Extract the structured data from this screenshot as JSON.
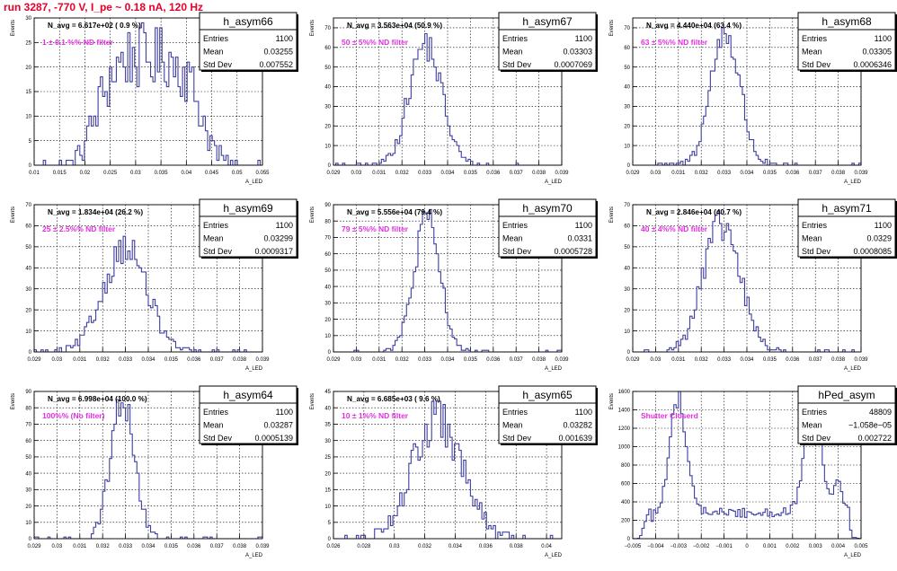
{
  "page_title": "run 3287,  -770 V, I_pe ~ 0.18 nA, 120 Hz",
  "stats_labels": {
    "entries": "Entries",
    "mean": "Mean",
    "stddev": "Std Dev"
  },
  "y_axis_label": "Events",
  "x_axis_label": "A_LED",
  "colors": {
    "histogram": "#3f3fa0",
    "title": "#e8002a",
    "annotation": "#e22fe0",
    "grid": "#000000"
  },
  "chart_data": [
    {
      "type": "bar",
      "name": "h_asym66",
      "title": "N_avg = 6.617e+02 ( 0.9 %)",
      "annotation": "1 ± 0.1 %% ND filter",
      "stats": {
        "entries": "1100",
        "mean": "0.03255",
        "stddev": "0.007552"
      },
      "xlim": [
        0.01,
        0.055
      ],
      "ylim": [
        0,
        30
      ],
      "xticks": [
        "0.01",
        "0.015",
        "0.02",
        "0.025",
        "0.03",
        "0.035",
        "0.04",
        "0.045",
        "0.05",
        "0.055"
      ],
      "yticks": [
        "0",
        "5",
        "10",
        "15",
        "20",
        "25",
        "30"
      ],
      "ytick_values": [
        0,
        5,
        10,
        15,
        20,
        25,
        30
      ],
      "profile": {
        "mean": 0.03255,
        "sd": 0.007552,
        "shape": "flat",
        "peak": 22
      },
      "xlabel": "A_LED",
      "ylabel": "Events"
    },
    {
      "type": "bar",
      "name": "h_asym67",
      "title": "N_avg = 3.563e+04 (50.9 %)",
      "annotation": "50 ± 5%% ND filter",
      "stats": {
        "entries": "1100",
        "mean": "0.03303",
        "stddev": "0.0007069"
      },
      "xlim": [
        0.029,
        0.039
      ],
      "ylim": [
        0,
        75
      ],
      "xticks": [
        "0.029",
        "0.03",
        "0.031",
        "0.032",
        "0.033",
        "0.034",
        "0.035",
        "0.036",
        "0.037",
        "0.038",
        "0.039"
      ],
      "yticks": [
        "0",
        "10",
        "20",
        "30",
        "40",
        "50",
        "60",
        "70"
      ],
      "ytick_values": [
        0,
        10,
        20,
        30,
        40,
        50,
        60,
        70
      ],
      "profile": {
        "mean": 0.03303,
        "sd": 0.0007069,
        "shape": "gauss",
        "peak": 62
      },
      "xlabel": "A_LED",
      "ylabel": "Events"
    },
    {
      "type": "bar",
      "name": "h_asym68",
      "title": "N_avg = 4.440e+04 (63.4 %)",
      "annotation": "63 ± 5%% ND filter",
      "stats": {
        "entries": "1100",
        "mean": "0.03305",
        "stddev": "0.0006346"
      },
      "xlim": [
        0.029,
        0.039
      ],
      "ylim": [
        0,
        75
      ],
      "xticks": [
        "0.029",
        "0.03",
        "0.031",
        "0.032",
        "0.033",
        "0.034",
        "0.035",
        "0.036",
        "0.037",
        "0.038",
        "0.039"
      ],
      "yticks": [
        "0",
        "10",
        "20",
        "30",
        "40",
        "50",
        "60",
        "70"
      ],
      "ytick_values": [
        0,
        10,
        20,
        30,
        40,
        50,
        60,
        70
      ],
      "profile": {
        "mean": 0.03305,
        "sd": 0.0006346,
        "shape": "gauss",
        "peak": 68
      },
      "xlabel": "A_LED",
      "ylabel": "Events"
    },
    {
      "type": "bar",
      "name": "h_asym69",
      "title": "N_avg = 1.834e+04 (26.2 %)",
      "annotation": "25 ± 2.5%% ND filter",
      "stats": {
        "entries": "1100",
        "mean": "0.03299",
        "stddev": "0.0009317"
      },
      "xlim": [
        0.029,
        0.039
      ],
      "ylim": [
        0,
        70
      ],
      "xticks": [
        "0.029",
        "0.03",
        "0.031",
        "0.032",
        "0.033",
        "0.034",
        "0.035",
        "0.036",
        "0.037",
        "0.038",
        "0.039"
      ],
      "yticks": [
        "0",
        "10",
        "20",
        "30",
        "40",
        "50",
        "60",
        "70"
      ],
      "ytick_values": [
        0,
        10,
        20,
        30,
        40,
        50,
        60,
        70
      ],
      "profile": {
        "mean": 0.03299,
        "sd": 0.0009317,
        "shape": "gauss",
        "peak": 50
      },
      "xlabel": "A_LED",
      "ylabel": "Events"
    },
    {
      "type": "bar",
      "name": "h_asym70",
      "title": "N_avg = 5.556e+04 (79.4 %)",
      "annotation": "79 ± 5%% ND filter",
      "stats": {
        "entries": "1100",
        "mean": "0.0331",
        "stddev": "0.0005728"
      },
      "xlim": [
        0.029,
        0.039
      ],
      "ylim": [
        0,
        90
      ],
      "xticks": [
        "0.029",
        "0.03",
        "0.031",
        "0.032",
        "0.033",
        "0.034",
        "0.035",
        "0.036",
        "0.037",
        "0.038",
        "0.039"
      ],
      "yticks": [
        "0",
        "10",
        "20",
        "30",
        "40",
        "50",
        "60",
        "70",
        "80",
        "90"
      ],
      "ytick_values": [
        0,
        10,
        20,
        30,
        40,
        50,
        60,
        70,
        80,
        90
      ],
      "profile": {
        "mean": 0.0331,
        "sd": 0.0005728,
        "shape": "gauss",
        "peak": 80
      },
      "xlabel": "A_LED",
      "ylabel": "Events"
    },
    {
      "type": "bar",
      "name": "h_asym71",
      "title": "N_avg = 2.846e+04 (40.7 %)",
      "annotation": "40 ± 4%% ND filter",
      "stats": {
        "entries": "1100",
        "mean": "0.0329",
        "stddev": "0.0008085"
      },
      "xlim": [
        0.029,
        0.039
      ],
      "ylim": [
        0,
        70
      ],
      "xticks": [
        "0.029",
        "0.03",
        "0.031",
        "0.032",
        "0.033",
        "0.034",
        "0.035",
        "0.036",
        "0.037",
        "0.038",
        "0.039"
      ],
      "yticks": [
        "0",
        "10",
        "20",
        "30",
        "40",
        "50",
        "60",
        "70"
      ],
      "ytick_values": [
        0,
        10,
        20,
        30,
        40,
        50,
        60,
        70
      ],
      "profile": {
        "mean": 0.0329,
        "sd": 0.0008085,
        "shape": "gauss",
        "peak": 60
      },
      "xlabel": "A_LED",
      "ylabel": "Events"
    },
    {
      "type": "bar",
      "name": "h_asym64",
      "title": "N_avg = 6.998e+04 (100.0 %)",
      "annotation": "100%% (No filter)",
      "stats": {
        "entries": "1100",
        "mean": "0.03287",
        "stddev": "0.0005139"
      },
      "xlim": [
        0.029,
        0.039
      ],
      "ylim": [
        0,
        90
      ],
      "xticks": [
        "0.029",
        "0.03",
        "0.031",
        "0.032",
        "0.033",
        "0.034",
        "0.035",
        "0.036",
        "0.037",
        "0.038",
        "0.039"
      ],
      "yticks": [
        "0",
        "10",
        "20",
        "30",
        "40",
        "50",
        "60",
        "70",
        "80",
        "90"
      ],
      "ytick_values": [
        0,
        10,
        20,
        30,
        40,
        50,
        60,
        70,
        80,
        90
      ],
      "profile": {
        "mean": 0.03287,
        "sd": 0.0005139,
        "shape": "gauss",
        "peak": 86
      },
      "xlabel": "A_LED",
      "ylabel": "Events"
    },
    {
      "type": "bar",
      "name": "h_asym65",
      "title": "N_avg = 6.685e+03 ( 9.6 %)",
      "annotation": "10 ± 1%% ND filter",
      "stats": {
        "entries": "1100",
        "mean": "0.03282",
        "stddev": "0.001639"
      },
      "xlim": [
        0.026,
        0.041
      ],
      "ylim": [
        0,
        45
      ],
      "xticks": [
        "0.026",
        "0.028",
        "0.03",
        "0.032",
        "0.034",
        "0.036",
        "0.038",
        "0.04"
      ],
      "ytick_values": [
        0,
        5,
        10,
        15,
        20,
        25,
        30,
        35,
        40,
        45
      ],
      "yticks": [
        "0",
        "5",
        "10",
        "15",
        "20",
        "25",
        "30",
        "35",
        "40",
        "45"
      ],
      "profile": {
        "mean": 0.03282,
        "sd": 0.001639,
        "shape": "gauss",
        "peak": 36
      },
      "xlabel": "A_LED",
      "ylabel": "Events"
    },
    {
      "type": "bar",
      "name": "hPed_asym",
      "title": "",
      "annotation": "Shutter Closerd",
      "stats": {
        "entries": "48809",
        "mean": "−1.058e−05",
        "stddev": "0.002722"
      },
      "xlim": [
        -0.005,
        0.005
      ],
      "ylim": [
        0,
        1600
      ],
      "xticks": [
        "−0.005",
        "−0.004",
        "−0.003",
        "−0.002",
        "−0.001",
        "0",
        "0.001",
        "0.002",
        "0.003",
        "0.004",
        "0.005"
      ],
      "yticks": [
        "0",
        "200",
        "400",
        "600",
        "800",
        "1000",
        "1200",
        "1400",
        "1600"
      ],
      "ytick_values": [
        0,
        200,
        400,
        600,
        800,
        1000,
        1200,
        1400,
        1600
      ],
      "profile": {
        "shape": "pedestal",
        "peak": 1560
      },
      "xlabel": "A_LED",
      "ylabel": "Events"
    }
  ]
}
